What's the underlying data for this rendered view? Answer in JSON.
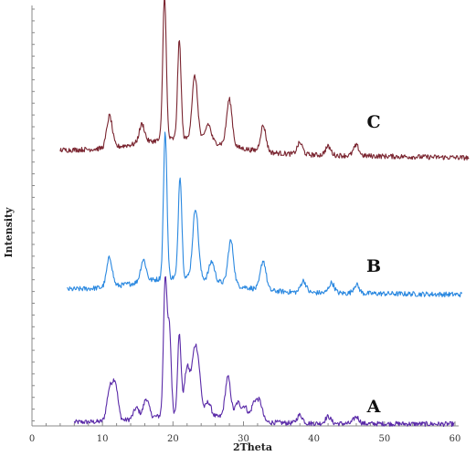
{
  "chart_data": {
    "type": "line",
    "title": "",
    "xlabel": "2Theta",
    "ylabel": "Intensity",
    "xlim": [
      0,
      60
    ],
    "x_ticks": [
      0,
      10,
      20,
      30,
      40,
      50,
      60
    ],
    "grid": false,
    "legend": "none",
    "series": [
      {
        "name": "A",
        "color": "#5a2aa8",
        "x_range": [
          6,
          60
        ],
        "peaks": [
          {
            "x": 11.0,
            "h": 0.22
          },
          {
            "x": 11.8,
            "h": 0.27
          },
          {
            "x": 14.8,
            "h": 0.08
          },
          {
            "x": 16.2,
            "h": 0.14
          },
          {
            "x": 18.9,
            "h": 1.0
          },
          {
            "x": 19.5,
            "h": 0.62
          },
          {
            "x": 20.9,
            "h": 0.58
          },
          {
            "x": 22.0,
            "h": 0.34
          },
          {
            "x": 23.0,
            "h": 0.38
          },
          {
            "x": 23.6,
            "h": 0.3
          },
          {
            "x": 25.0,
            "h": 0.1
          },
          {
            "x": 27.8,
            "h": 0.3
          },
          {
            "x": 29.2,
            "h": 0.12
          },
          {
            "x": 30.2,
            "h": 0.1
          },
          {
            "x": 31.5,
            "h": 0.13
          },
          {
            "x": 32.3,
            "h": 0.14
          },
          {
            "x": 38.0,
            "h": 0.06
          },
          {
            "x": 42.0,
            "h": 0.05
          },
          {
            "x": 46.0,
            "h": 0.05
          }
        ]
      },
      {
        "name": "B",
        "color": "#2a88e0",
        "x_range": [
          5,
          61
        ],
        "peaks": [
          {
            "x": 11.0,
            "h": 0.2
          },
          {
            "x": 15.8,
            "h": 0.15
          },
          {
            "x": 18.9,
            "h": 1.0
          },
          {
            "x": 21.0,
            "h": 0.7
          },
          {
            "x": 23.2,
            "h": 0.48
          },
          {
            "x": 25.5,
            "h": 0.13
          },
          {
            "x": 28.2,
            "h": 0.3
          },
          {
            "x": 32.8,
            "h": 0.2
          },
          {
            "x": 38.5,
            "h": 0.08
          },
          {
            "x": 42.5,
            "h": 0.07
          },
          {
            "x": 46.0,
            "h": 0.06
          }
        ]
      },
      {
        "name": "C",
        "color": "#7a2530",
        "x_range": [
          4,
          62
        ],
        "peaks": [
          {
            "x": 11.0,
            "h": 0.22
          },
          {
            "x": 15.6,
            "h": 0.13
          },
          {
            "x": 18.8,
            "h": 1.0
          },
          {
            "x": 20.9,
            "h": 0.68
          },
          {
            "x": 23.1,
            "h": 0.44
          },
          {
            "x": 25.0,
            "h": 0.12
          },
          {
            "x": 28.0,
            "h": 0.32
          },
          {
            "x": 32.8,
            "h": 0.18
          },
          {
            "x": 38.0,
            "h": 0.08
          },
          {
            "x": 42.0,
            "h": 0.06
          },
          {
            "x": 46.0,
            "h": 0.07
          }
        ]
      }
    ]
  }
}
